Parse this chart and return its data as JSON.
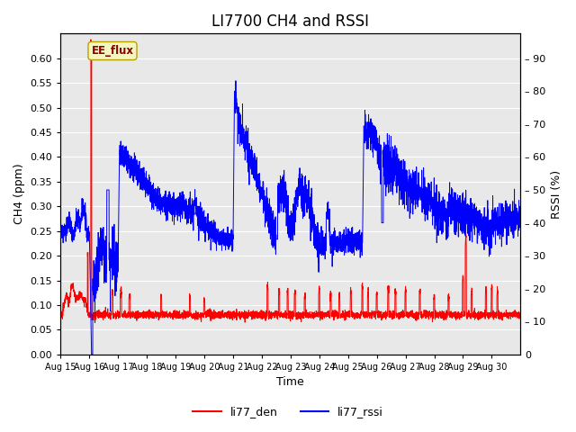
{
  "title": "LI7700 CH4 and RSSI",
  "xlabel": "Time",
  "ylabel_left": "CH4 (ppm)",
  "ylabel_right": "RSSI (%)",
  "ylim_left": [
    0.0,
    0.65
  ],
  "ylim_right": [
    0,
    97.5
  ],
  "yticks_left": [
    0.0,
    0.05,
    0.1,
    0.15,
    0.2,
    0.25,
    0.3,
    0.35,
    0.4,
    0.45,
    0.5,
    0.55,
    0.6
  ],
  "yticks_right": [
    0,
    10,
    20,
    30,
    40,
    50,
    60,
    70,
    80,
    90
  ],
  "xtick_labels": [
    "Aug 15",
    "Aug 16",
    "Aug 17",
    "Aug 18",
    "Aug 19",
    "Aug 20",
    "Aug 21",
    "Aug 22",
    "Aug 23",
    "Aug 24",
    "Aug 25",
    "Aug 26",
    "Aug 27",
    "Aug 28",
    "Aug 29",
    "Aug 30"
  ],
  "annotation_text": "EE_flux",
  "bg_color": "#e8e8e8",
  "grid_color": "#ffffff",
  "line_red": "#ff0000",
  "line_blue": "#0000ff",
  "legend_labels": [
    "li77_den",
    "li77_rssi"
  ],
  "title_fontsize": 12,
  "label_fontsize": 9,
  "tick_fontsize": 8
}
